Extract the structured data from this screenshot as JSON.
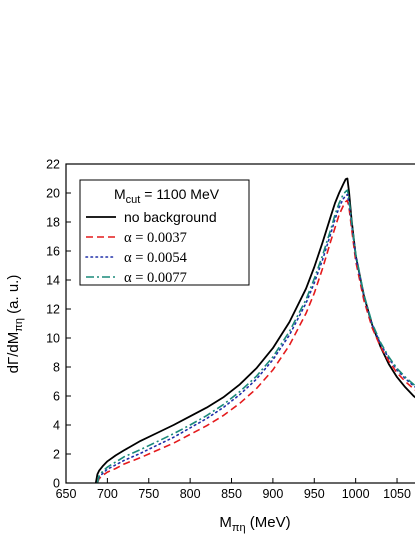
{
  "chart_data": {
    "type": "line",
    "title": "",
    "xlabel": {
      "main": "M",
      "sub": "πη",
      "rest": " (MeV)"
    },
    "ylabel": {
      "pre": "dΓ/dM",
      "sub": "πη",
      "rest": " (a. u.)"
    },
    "xlim": [
      650,
      1085
    ],
    "ylim": [
      0,
      22
    ],
    "xticks": [
      650,
      700,
      750,
      800,
      850,
      900,
      950,
      1000,
      1050
    ],
    "yticks": [
      0,
      2,
      4,
      6,
      8,
      10,
      12,
      14,
      16,
      18,
      20,
      22
    ],
    "grid": false,
    "legend": {
      "placement": "top-left",
      "header": {
        "main": "M",
        "sub": "cut",
        "rest": " = 1100 MeV"
      }
    },
    "series": [
      {
        "name": "no background",
        "color": "#000000",
        "dash": "solid",
        "x": [
          686,
          688,
          690,
          695,
          700,
          710,
          720,
          740,
          760,
          780,
          800,
          820,
          840,
          860,
          880,
          900,
          920,
          940,
          950,
          960,
          970,
          975,
          980,
          985,
          988,
          990,
          992,
          995,
          1000,
          1010,
          1020,
          1030,
          1040,
          1050,
          1060,
          1070,
          1085
        ],
        "y": [
          0,
          0.6,
          0.85,
          1.2,
          1.5,
          1.9,
          2.25,
          2.9,
          3.45,
          4.0,
          4.6,
          5.2,
          5.9,
          6.8,
          7.9,
          9.3,
          11.1,
          13.4,
          14.9,
          16.6,
          18.4,
          19.3,
          20.0,
          20.6,
          20.95,
          21.0,
          20.1,
          18.2,
          15.7,
          12.9,
          10.9,
          9.4,
          8.2,
          7.3,
          6.6,
          6.0,
          5.3
        ]
      },
      {
        "name": "α = 0.0037",
        "color": "#e41a1c",
        "dash": "dash",
        "x": [
          688,
          690,
          695,
          700,
          710,
          720,
          740,
          760,
          780,
          800,
          820,
          840,
          860,
          880,
          900,
          920,
          940,
          950,
          960,
          970,
          975,
          980,
          985,
          988,
          990,
          992,
          995,
          1000,
          1010,
          1020,
          1030,
          1040,
          1050,
          1060,
          1070,
          1085
        ],
        "y": [
          0,
          0.3,
          0.55,
          0.75,
          1.0,
          1.3,
          1.75,
          2.25,
          2.75,
          3.35,
          3.95,
          4.65,
          5.5,
          6.5,
          7.8,
          9.5,
          11.7,
          13.1,
          14.8,
          16.7,
          17.6,
          18.5,
          19.1,
          19.4,
          19.5,
          19.0,
          17.6,
          15.3,
          12.6,
          10.7,
          9.4,
          8.4,
          7.6,
          7.0,
          6.5,
          5.9
        ]
      },
      {
        "name": "α = 0.0054",
        "color": "#1f2fa8",
        "dash": "dot",
        "x": [
          688,
          690,
          695,
          700,
          710,
          720,
          740,
          760,
          780,
          800,
          820,
          840,
          860,
          880,
          900,
          920,
          940,
          950,
          960,
          970,
          975,
          980,
          985,
          988,
          990,
          992,
          995,
          1000,
          1010,
          1020,
          1030,
          1040,
          1050,
          1060,
          1070,
          1085
        ],
        "y": [
          0,
          0.4,
          0.7,
          0.95,
          1.25,
          1.55,
          2.05,
          2.6,
          3.15,
          3.8,
          4.45,
          5.2,
          6.1,
          7.15,
          8.5,
          10.2,
          12.4,
          13.8,
          15.4,
          17.2,
          18.2,
          19.0,
          19.6,
          19.8,
          19.9,
          19.3,
          17.9,
          15.6,
          12.9,
          10.9,
          9.6,
          8.6,
          7.8,
          7.2,
          6.7,
          6.1
        ]
      },
      {
        "name": "α = 0.0077",
        "color": "#1a8a7a",
        "dash": "dashdot",
        "x": [
          688,
          690,
          695,
          700,
          710,
          720,
          740,
          760,
          780,
          800,
          820,
          840,
          860,
          880,
          900,
          920,
          940,
          950,
          960,
          970,
          975,
          980,
          985,
          988,
          990,
          992,
          995,
          1000,
          1010,
          1020,
          1030,
          1040,
          1050,
          1060,
          1070,
          1085
        ],
        "y": [
          0,
          0.5,
          0.85,
          1.1,
          1.45,
          1.8,
          2.3,
          2.85,
          3.4,
          4.0,
          4.65,
          5.4,
          6.3,
          7.35,
          8.7,
          10.45,
          12.65,
          14.1,
          15.7,
          17.5,
          18.5,
          19.3,
          19.9,
          20.1,
          20.2,
          19.6,
          18.1,
          15.8,
          13.0,
          11.0,
          9.7,
          8.7,
          7.9,
          7.3,
          6.8,
          6.2
        ]
      }
    ]
  }
}
